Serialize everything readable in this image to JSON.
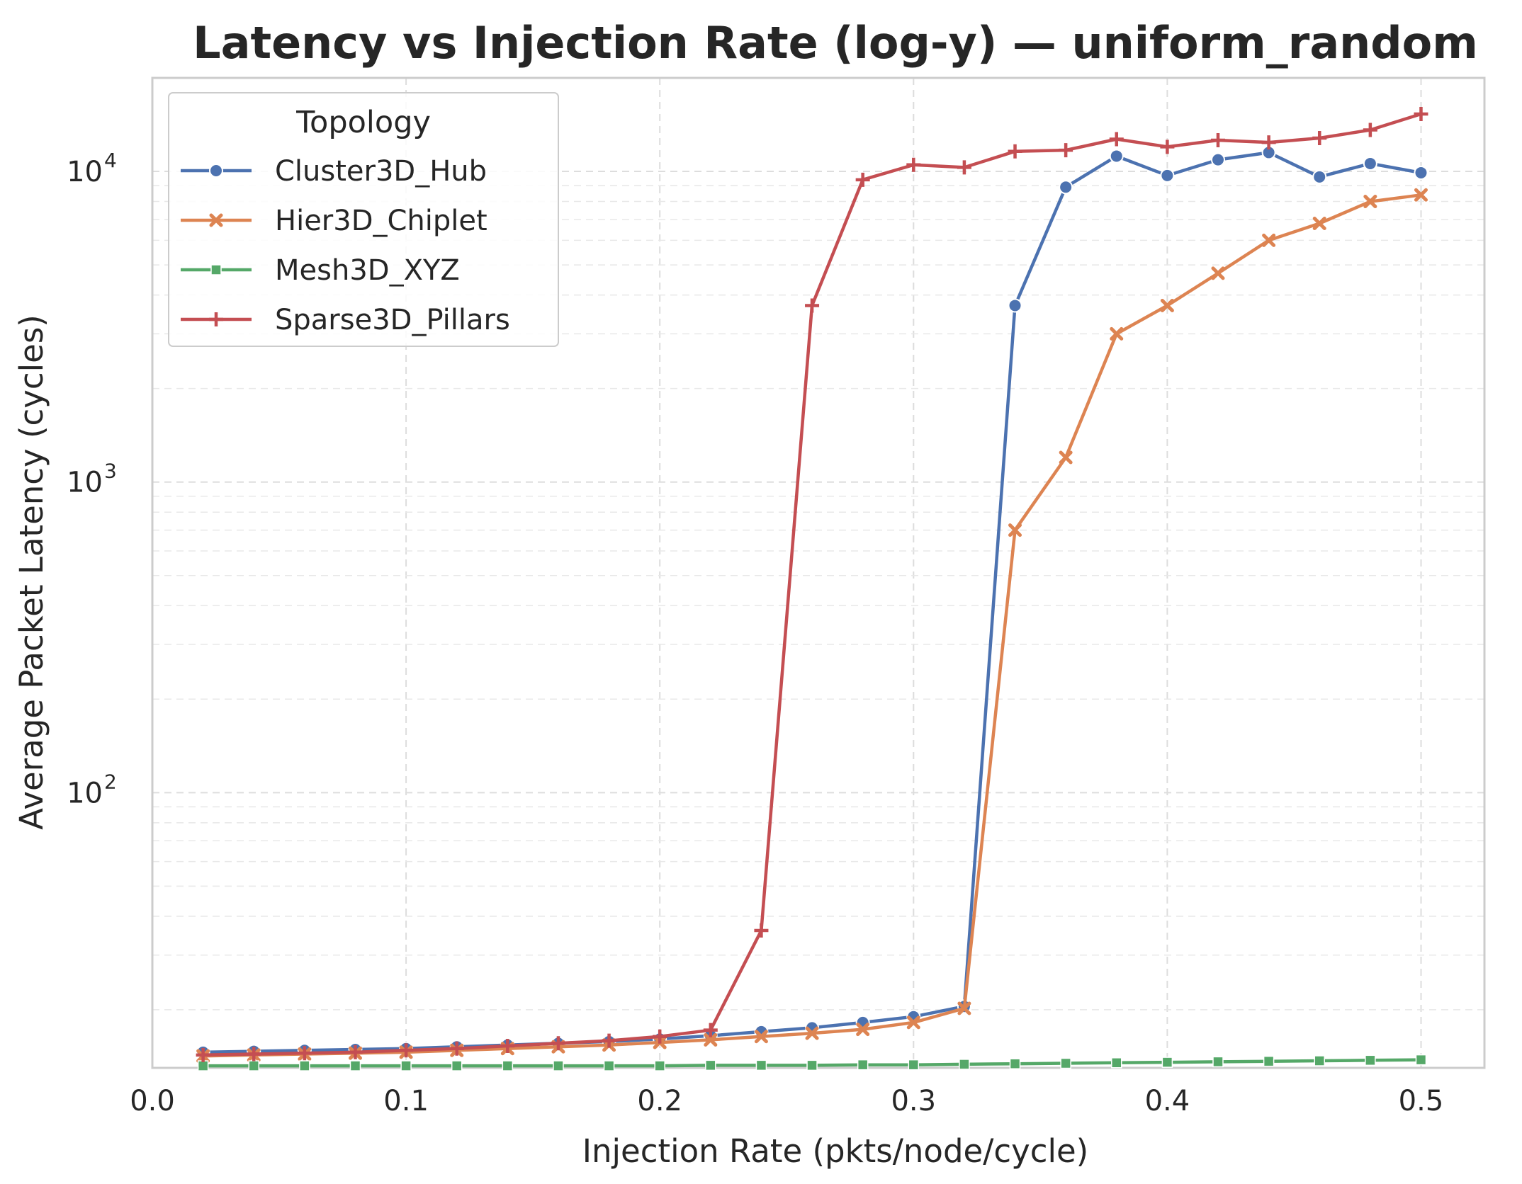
{
  "chart_data": {
    "type": "line",
    "title": "Latency vs Injection Rate (log-y) — uniform_random",
    "xlabel": "Injection Rate (pkts/node/cycle)",
    "ylabel": "Average Packet Latency (cycles)",
    "xlim": [
      0.0,
      0.525
    ],
    "ylim": [
      13,
      20000
    ],
    "yscale": "log",
    "grid": true,
    "legend": {
      "title": "Topology",
      "placement": "top-left"
    },
    "x_ticks": [
      "0.0",
      "0.1",
      "0.2",
      "0.3",
      "0.4",
      "0.5"
    ],
    "y_ticks": [
      {
        "value": 100,
        "base": "10",
        "exp": "2"
      },
      {
        "value": 1000,
        "base": "10",
        "exp": "3"
      },
      {
        "value": 10000,
        "base": "10",
        "exp": "4"
      }
    ],
    "x": [
      0.02,
      0.04,
      0.06,
      0.08,
      0.1,
      0.12,
      0.14,
      0.16,
      0.18,
      0.2,
      0.22,
      0.24,
      0.26,
      0.28,
      0.3,
      0.32,
      0.34,
      0.36,
      0.38,
      0.4,
      0.42,
      0.44,
      0.46,
      0.48,
      0.5
    ],
    "series": [
      {
        "name": "Cluster3D_Hub",
        "color": "#4c72b0",
        "marker": "circle",
        "values": [
          14.6,
          14.7,
          14.8,
          14.9,
          15.0,
          15.2,
          15.4,
          15.6,
          15.8,
          16.1,
          16.5,
          17.0,
          17.5,
          18.2,
          19.0,
          20.5,
          3700,
          8900,
          11200,
          9700,
          10900,
          11500,
          9600,
          10600,
          9900
        ]
      },
      {
        "name": "Hier3D_Chiplet",
        "color": "#dd8452",
        "marker": "x",
        "values": [
          14.2,
          14.3,
          14.4,
          14.5,
          14.6,
          14.8,
          15.0,
          15.2,
          15.4,
          15.7,
          16.0,
          16.4,
          16.8,
          17.3,
          18.2,
          20.2,
          700,
          1200,
          3000,
          3700,
          4700,
          6000,
          6800,
          8000,
          8400
        ]
      },
      {
        "name": "Mesh3D_XYZ",
        "color": "#55a868",
        "marker": "square",
        "values": [
          13.2,
          13.2,
          13.2,
          13.2,
          13.2,
          13.2,
          13.2,
          13.2,
          13.2,
          13.2,
          13.25,
          13.25,
          13.25,
          13.3,
          13.3,
          13.35,
          13.4,
          13.45,
          13.5,
          13.55,
          13.6,
          13.65,
          13.7,
          13.75,
          13.8
        ]
      },
      {
        "name": "Sparse3D_Pillars",
        "color": "#c44e52",
        "marker": "plus",
        "values": [
          14.3,
          14.4,
          14.5,
          14.6,
          14.8,
          15.0,
          15.3,
          15.6,
          15.9,
          16.4,
          17.2,
          36,
          3700,
          9400,
          10500,
          10300,
          11600,
          11700,
          12700,
          12000,
          12600,
          12400,
          12800,
          13600,
          15300
        ]
      }
    ]
  }
}
